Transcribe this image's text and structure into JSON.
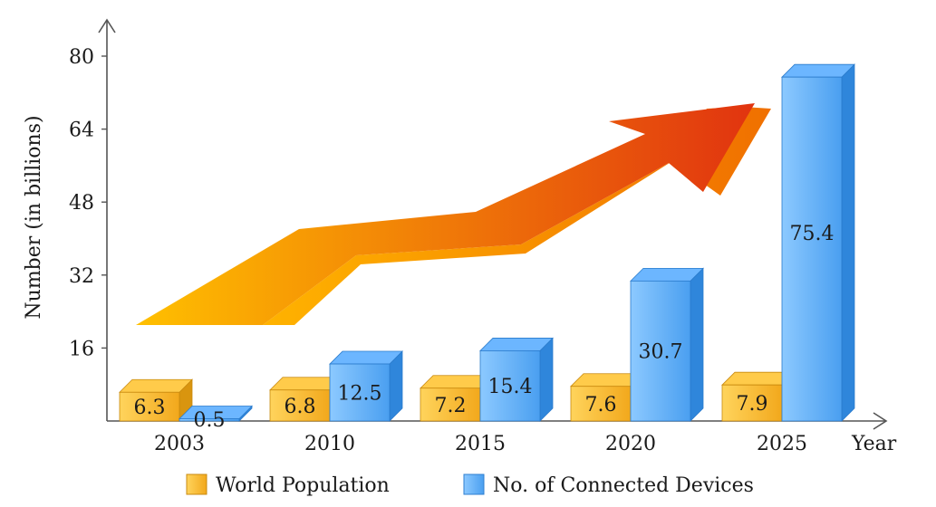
{
  "chart_data": {
    "type": "bar",
    "ylabel": "Number (in billions)",
    "xlabel": "Year",
    "ylim": [
      0,
      80
    ],
    "yticks": [
      16,
      32,
      48,
      64,
      80
    ],
    "categories": [
      "2003",
      "2010",
      "2015",
      "2020",
      "2025"
    ],
    "series": [
      {
        "name": "World Population",
        "values": [
          6.3,
          6.8,
          7.2,
          7.6,
          7.9
        ],
        "color": "#F5B830"
      },
      {
        "name": "No. of Connected Devices",
        "values": [
          0.5,
          12.5,
          15.4,
          30.7,
          75.4
        ],
        "color": "#4BA3F5"
      }
    ],
    "labels": [
      [
        "6.3",
        "6.8",
        "7.2",
        "7.6",
        "7.9"
      ],
      [
        "0.5",
        "12.5",
        "15.4",
        "30.7",
        "75.4"
      ]
    ],
    "legend_position": "bottom",
    "grid": false,
    "arrow_colors": [
      "#FFC000",
      "#E03010"
    ]
  }
}
